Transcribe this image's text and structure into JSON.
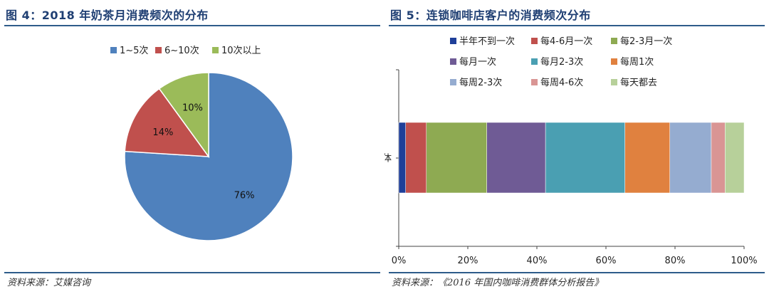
{
  "left": {
    "title": "图 4：2018 年奶茶月消费频次的分布",
    "source": "资料来源：艾媒咨询"
  },
  "right": {
    "title": "图 5：连锁咖啡店客户的消费频次分布",
    "source": "资料来源：《2016 年国内咖啡消费群体分析报告》"
  },
  "chart_data": [
    {
      "type": "pie",
      "categories": [
        "1~5次",
        "6~10次",
        "10次以上"
      ],
      "values": [
        76,
        14,
        10
      ],
      "labels": [
        "76%",
        "14%",
        "10%"
      ],
      "colors": [
        "#4f81bd",
        "#c0504d",
        "#9bbb59"
      ],
      "legend": "top"
    },
    {
      "type": "bar",
      "orientation": "horizontal",
      "stacked": true,
      "categories": [
        "整体"
      ],
      "series": [
        {
          "name": "半年不到一次",
          "values": [
            2
          ],
          "color": "#1f3f99"
        },
        {
          "name": "每4-6月一次",
          "values": [
            6
          ],
          "color": "#c0504d"
        },
        {
          "name": "每2-3月一次",
          "values": [
            17.5
          ],
          "color": "#8eaa52"
        },
        {
          "name": "每月一次",
          "values": [
            17
          ],
          "color": "#6f5b95"
        },
        {
          "name": "每月2-3次",
          "values": [
            23
          ],
          "color": "#4a9fb2"
        },
        {
          "name": "每周1次",
          "values": [
            13
          ],
          "color": "#e0813f"
        },
        {
          "name": "每周2-3次",
          "values": [
            12
          ],
          "color": "#95acd0"
        },
        {
          "name": "每周4-6次",
          "values": [
            4
          ],
          "color": "#d99594"
        },
        {
          "name": "每天都去",
          "values": [
            5.5
          ],
          "color": "#b7d09a"
        }
      ],
      "xlim": [
        0,
        100
      ],
      "xticks": [
        "0%",
        "20%",
        "40%",
        "60%",
        "80%",
        "100%"
      ],
      "legend": "top"
    }
  ]
}
